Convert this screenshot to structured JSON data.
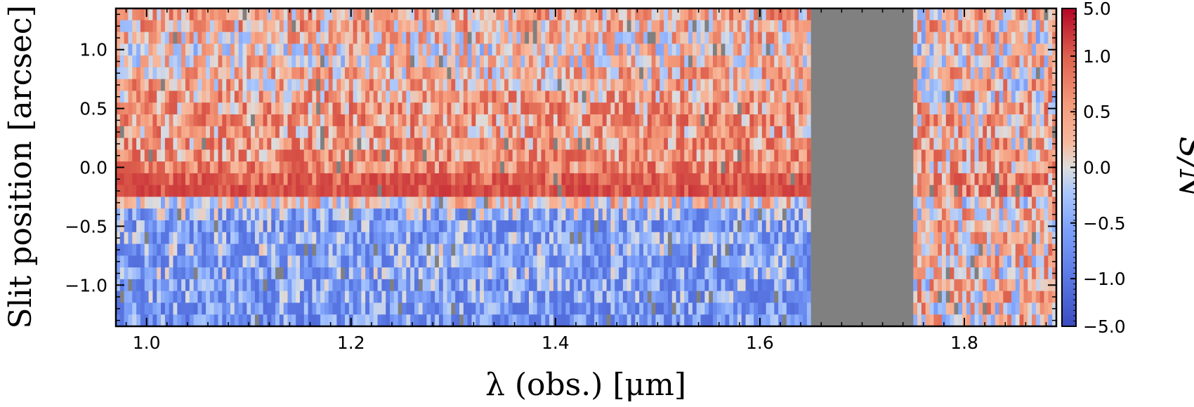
{
  "chart_data": {
    "type": "heatmap",
    "title": "",
    "xlabel": "λ (obs.) [μm]",
    "ylabel": "Slit position [arcsec]",
    "xlim": [
      0.97,
      1.89
    ],
    "ylim": [
      -1.35,
      1.35
    ],
    "x_ticks": [
      1.0,
      1.2,
      1.4,
      1.6,
      1.8
    ],
    "x_tick_labels": [
      "1.0",
      "1.2",
      "1.4",
      "1.6",
      "1.8"
    ],
    "y_ticks": [
      1.0,
      0.5,
      0.0,
      -0.5,
      -1.0
    ],
    "y_tick_labels": [
      "1.0",
      "0.5",
      "0.0",
      "−0.5",
      "−1.0"
    ],
    "masked_region": {
      "x_range": [
        1.65,
        1.75
      ],
      "color": "#808080"
    },
    "colorbar": {
      "label": "S/N",
      "colormap": "coolwarm",
      "scale": "symmetric-log",
      "ticks": [
        5.0,
        1.0,
        0.5,
        0.0,
        -0.5,
        -1.0,
        -5.0
      ],
      "tick_labels": [
        "5.0",
        "1.0",
        "0.5",
        "0.0",
        "−0.5",
        "−1.0",
        "−5.0"
      ],
      "range": [
        -5.0,
        5.0
      ]
    },
    "row_mean_sn": [
      {
        "y": 1.3,
        "sn": 0.4
      },
      {
        "y": 1.2,
        "sn": 0.35
      },
      {
        "y": 1.1,
        "sn": 0.25
      },
      {
        "y": 1.0,
        "sn": 0.15
      },
      {
        "y": 0.9,
        "sn": 0.2
      },
      {
        "y": 0.8,
        "sn": 0.3
      },
      {
        "y": 0.7,
        "sn": 0.35
      },
      {
        "y": 0.6,
        "sn": 0.45
      },
      {
        "y": 0.5,
        "sn": 0.55
      },
      {
        "y": 0.4,
        "sn": 0.6
      },
      {
        "y": 0.3,
        "sn": 0.5
      },
      {
        "y": 0.2,
        "sn": 0.55
      },
      {
        "y": 0.1,
        "sn": 0.65
      },
      {
        "y": 0.0,
        "sn": 0.8
      },
      {
        "y": -0.1,
        "sn": 1.2
      },
      {
        "y": -0.2,
        "sn": 1.4
      },
      {
        "y": -0.3,
        "sn": 0.1
      },
      {
        "y": -0.4,
        "sn": -0.45
      },
      {
        "y": -0.5,
        "sn": -0.6
      },
      {
        "y": -0.6,
        "sn": -0.55
      },
      {
        "y": -0.7,
        "sn": -0.5
      },
      {
        "y": -0.8,
        "sn": -0.6
      },
      {
        "y": -0.9,
        "sn": -0.55
      },
      {
        "y": -1.0,
        "sn": -0.6
      },
      {
        "y": -1.1,
        "sn": -0.65
      },
      {
        "y": -1.2,
        "sn": -0.75
      },
      {
        "y": -1.3,
        "sn": -0.8
      }
    ]
  },
  "colors": {
    "masked_gray": "#808080",
    "frame": "#000000",
    "cmap_low": "#3b4cc0",
    "cmap_mid": "#dddddd",
    "cmap_high": "#b40426"
  }
}
